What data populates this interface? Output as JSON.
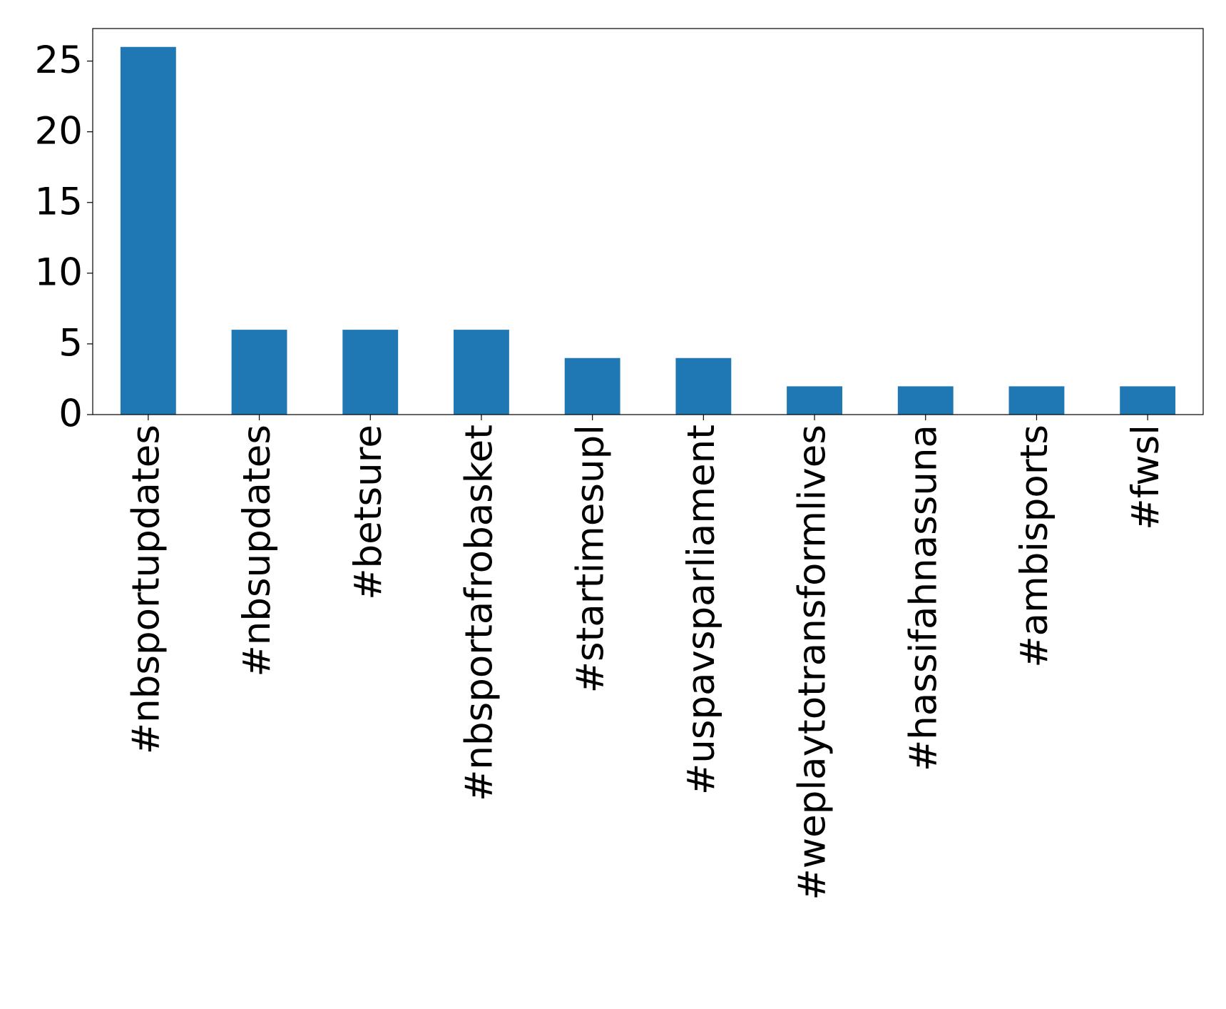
{
  "chart_data": {
    "type": "bar",
    "categories": [
      "#nbsportupdates",
      "#nbsupdates",
      "#betsure",
      "#nbsportafrobasket",
      "#startimesupl",
      "#uspavsparliament",
      "#weplaytotransformlives",
      "#hassifahnassuna",
      "#ambisports",
      "#fwsl"
    ],
    "values": [
      26,
      6,
      6,
      6,
      4,
      4,
      2,
      2,
      2,
      2
    ],
    "color": "#1f77b4",
    "ylim": [
      0,
      27.3
    ],
    "yticks": [
      0,
      5,
      10,
      15,
      20,
      25
    ],
    "grid": false
  }
}
